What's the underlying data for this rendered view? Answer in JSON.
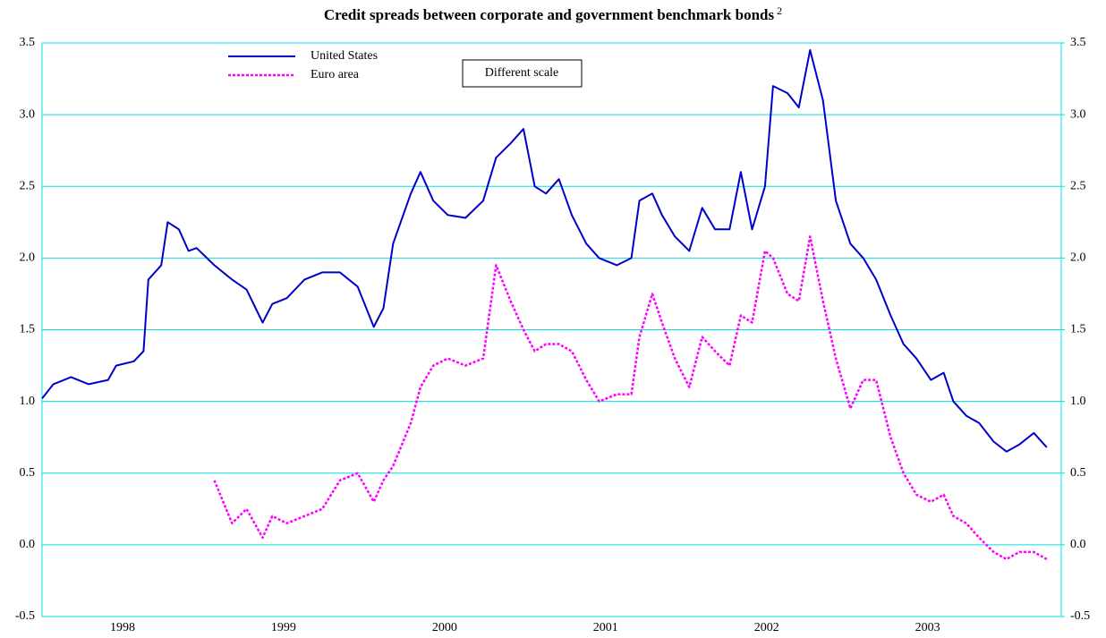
{
  "chart_data": {
    "type": "line",
    "title": "Credit spreads between corporate and government benchmark bonds",
    "title_note": "2",
    "annotation": "Different scale",
    "x": [
      1998.0,
      1998.07,
      1998.18,
      1998.29,
      1998.41,
      1998.46,
      1998.57,
      1998.63,
      1998.66,
      1998.74,
      1998.78,
      1998.85,
      1998.91,
      1998.96,
      1999.07,
      1999.18,
      1999.27,
      1999.37,
      1999.43,
      1999.52,
      1999.63,
      1999.74,
      1999.85,
      1999.96,
      2000.06,
      2000.12,
      2000.18,
      2000.29,
      2000.35,
      2000.43,
      2000.52,
      2000.63,
      2000.74,
      2000.82,
      2000.91,
      2000.99,
      2001.06,
      2001.13,
      2001.21,
      2001.29,
      2001.38,
      2001.46,
      2001.57,
      2001.66,
      2001.71,
      2001.79,
      2001.85,
      2001.93,
      2002.02,
      2002.1,
      2002.18,
      2002.27,
      2002.34,
      2002.41,
      2002.49,
      2002.54,
      2002.63,
      2002.7,
      2002.77,
      2002.85,
      2002.93,
      2003.02,
      2003.1,
      2003.18,
      2003.27,
      2003.35,
      2003.43,
      2003.52,
      2003.6,
      2003.66,
      2003.74,
      2003.82,
      2003.91,
      2003.99,
      2004.07,
      2004.16,
      2004.24
    ],
    "series": [
      {
        "name": "United States",
        "color": "#0000cc",
        "dash": false,
        "values": [
          1.02,
          1.12,
          1.17,
          1.12,
          1.15,
          1.25,
          1.28,
          1.35,
          1.85,
          1.95,
          2.25,
          2.2,
          2.05,
          2.07,
          1.95,
          1.85,
          1.78,
          1.55,
          1.68,
          1.72,
          1.85,
          1.9,
          1.9,
          1.8,
          1.52,
          1.65,
          2.1,
          2.45,
          2.6,
          2.4,
          2.3,
          2.28,
          2.4,
          2.7,
          2.8,
          2.9,
          2.5,
          2.45,
          2.55,
          2.3,
          2.1,
          2.0,
          1.95,
          2.0,
          2.4,
          2.45,
          2.3,
          2.15,
          2.05,
          2.35,
          2.2,
          2.2,
          2.6,
          2.2,
          2.5,
          3.2,
          3.15,
          3.05,
          3.45,
          3.1,
          2.4,
          2.1,
          2.0,
          1.85,
          1.6,
          1.4,
          1.3,
          1.15,
          1.2,
          1.0,
          0.9,
          0.85,
          0.72,
          0.65,
          0.7,
          0.78,
          0.68
        ]
      },
      {
        "name": "Euro area",
        "color": "#ff00ff",
        "dash": true,
        "axis": "y2",
        "values": [
          null,
          null,
          null,
          null,
          null,
          null,
          null,
          null,
          null,
          null,
          null,
          null,
          null,
          null,
          0.45,
          0.15,
          0.25,
          0.05,
          0.2,
          0.15,
          0.2,
          0.25,
          0.45,
          0.5,
          0.3,
          0.45,
          0.55,
          0.85,
          1.1,
          1.25,
          1.3,
          1.25,
          1.3,
          1.95,
          1.7,
          1.5,
          1.35,
          1.4,
          1.4,
          1.35,
          1.15,
          1.0,
          1.05,
          1.05,
          1.45,
          1.75,
          1.55,
          1.3,
          1.1,
          1.45,
          1.35,
          1.25,
          1.6,
          1.55,
          2.05,
          2.0,
          1.75,
          1.7,
          2.15,
          1.7,
          1.3,
          0.95,
          1.15,
          1.15,
          0.75,
          0.5,
          0.35,
          0.3,
          0.35,
          0.2,
          0.15,
          0.05,
          -0.05,
          -0.1,
          -0.05,
          -0.05,
          -0.1
        ]
      }
    ],
    "xlim": [
      1998,
      2004.33
    ],
    "xticks": [
      {
        "value": 1998.5,
        "label": "1998"
      },
      {
        "value": 1999.5,
        "label": "1999"
      },
      {
        "value": 2000.5,
        "label": "2000"
      },
      {
        "value": 2001.5,
        "label": "2001"
      },
      {
        "value": 2002.5,
        "label": "2002"
      },
      {
        "value": 2003.5,
        "label": "2003"
      }
    ],
    "ylim": [
      -0.5,
      3.5
    ],
    "yticks": [
      -0.5,
      {
        "value": 0,
        "label": "0.0"
      },
      0.5,
      {
        "value": 1,
        "label": "1.0"
      },
      1.5,
      {
        "value": 2,
        "label": "2.0"
      },
      2.5,
      {
        "value": 3,
        "label": "3.0"
      },
      3.5
    ],
    "y2lim": [
      -0.5,
      3.5
    ],
    "y2ticks": [
      -0.5,
      {
        "value": 0,
        "label": "0.0"
      },
      0.5,
      {
        "value": 1,
        "label": "1.0"
      },
      1.5,
      {
        "value": 2,
        "label": "2.0"
      },
      2.5,
      {
        "value": 3,
        "label": "3.0"
      },
      3.5
    ],
    "grid": true,
    "grid_color": "#00e0e8"
  }
}
